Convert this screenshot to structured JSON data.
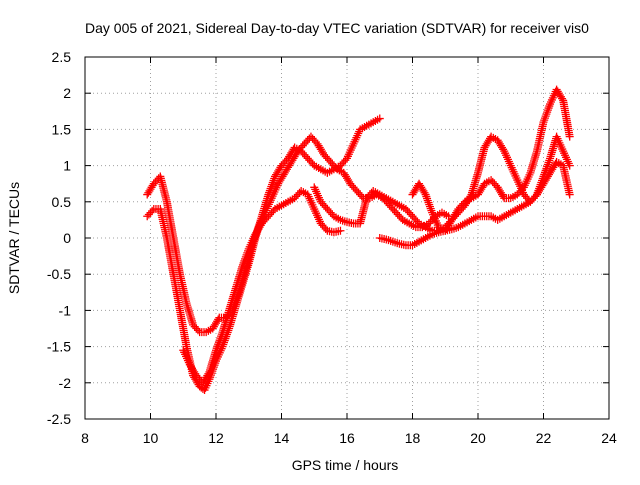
{
  "chart_data": {
    "type": "scatter",
    "title": "Day 005 of 2021, Sidereal Day-to-day VTEC variation (SDTVAR) for receiver vis0",
    "xlabel": "GPS time / hours",
    "ylabel": "SDTVAR / TECUs",
    "xlim": [
      8,
      24
    ],
    "ylim": [
      -2.5,
      2.5
    ],
    "xticks": [
      8,
      10,
      12,
      14,
      16,
      18,
      20,
      22,
      24
    ],
    "yticks": [
      -2.5,
      -2,
      -1.5,
      -1,
      -0.5,
      0,
      0.5,
      1,
      1.5,
      2,
      2.5
    ],
    "xtick_labels": [
      "8",
      "10",
      "12",
      "14",
      "16",
      "18",
      "20",
      "22",
      "24"
    ],
    "ytick_labels": [
      "-2.5",
      "-2",
      "-1.5",
      "-1",
      "-0.5",
      "0",
      "0.5",
      "1",
      "1.5",
      "2",
      "2.5"
    ],
    "grid": true,
    "marker": "+",
    "color": "#ff0000",
    "series": [
      {
        "x": [
          9.9,
          10.1,
          10.3,
          10.5,
          10.7,
          10.9,
          11.1,
          11.3,
          11.5,
          11.65,
          11.8,
          12.0,
          12.2,
          12.4,
          12.6,
          12.8,
          13.0,
          13.2,
          13.4,
          13.6,
          13.8,
          14.0,
          14.2,
          14.4,
          14.6,
          14.8,
          15.0,
          15.2,
          15.4,
          15.6,
          15.8,
          16.0,
          16.2,
          16.4,
          16.6,
          16.8,
          17.0
        ],
        "y": [
          0.3,
          0.4,
          0.4,
          0.0,
          -0.5,
          -1.0,
          -1.5,
          -1.9,
          -2.05,
          -2.1,
          -1.95,
          -1.7,
          -1.5,
          -1.25,
          -0.95,
          -0.65,
          -0.35,
          0.0,
          0.3,
          0.6,
          0.85,
          1.0,
          1.1,
          1.25,
          1.2,
          1.1,
          1.0,
          0.95,
          0.9,
          0.95,
          1.0,
          1.1,
          1.3,
          1.5,
          1.55,
          1.6,
          1.65
        ]
      },
      {
        "x": [
          9.9,
          10.1,
          10.3,
          10.5,
          10.7,
          10.9,
          11.1,
          11.3,
          11.5,
          11.7,
          11.9,
          12.1,
          12.3,
          12.5,
          12.7,
          12.9,
          13.1,
          13.3,
          13.5,
          13.7,
          13.9,
          14.1,
          14.3,
          14.5,
          14.7,
          14.9,
          15.1,
          15.3,
          15.5,
          15.7,
          15.9,
          16.1,
          16.3,
          16.5,
          16.7,
          16.9,
          17.1,
          17.3,
          17.5,
          17.7,
          17.9,
          18.1,
          18.3,
          18.5,
          18.7,
          18.9,
          19.1
        ],
        "y": [
          0.6,
          0.75,
          0.85,
          0.5,
          0.0,
          -0.5,
          -0.9,
          -1.2,
          -1.3,
          -1.3,
          -1.25,
          -1.1,
          -1.1,
          -1.0,
          -0.75,
          -0.45,
          -0.1,
          0.15,
          0.35,
          0.55,
          0.75,
          0.9,
          1.05,
          1.2,
          1.3,
          1.4,
          1.3,
          1.15,
          1.05,
          0.95,
          0.9,
          0.75,
          0.65,
          0.55,
          0.55,
          0.6,
          0.55,
          0.45,
          0.35,
          0.25,
          0.2,
          0.15,
          0.15,
          0.2,
          0.3,
          0.35,
          0.3
        ]
      },
      {
        "x": [
          11.0,
          11.2,
          11.4,
          11.6,
          11.8,
          12.0,
          12.2,
          12.4,
          12.6,
          12.8,
          13.0,
          13.2,
          13.4,
          13.6,
          13.8,
          14.0,
          14.2,
          14.4,
          14.6,
          14.8,
          15.0,
          15.2,
          15.4,
          15.6,
          15.8
        ],
        "y": [
          -1.55,
          -1.75,
          -1.9,
          -2.0,
          -1.85,
          -1.55,
          -1.3,
          -1.0,
          -0.7,
          -0.4,
          -0.15,
          0.05,
          0.2,
          0.3,
          0.4,
          0.45,
          0.5,
          0.55,
          0.65,
          0.6,
          0.4,
          0.2,
          0.1,
          0.08,
          0.1
        ]
      },
      {
        "x": [
          15.0,
          15.2,
          15.4,
          15.6,
          15.8,
          16.0,
          16.2,
          16.4,
          16.6,
          16.8,
          17.0,
          17.2,
          17.4,
          17.6,
          17.8,
          18.0,
          18.2,
          18.4,
          18.6,
          18.8,
          19.0,
          19.2,
          19.4,
          19.6,
          19.8,
          20.0,
          20.2,
          20.4,
          20.6,
          20.8,
          21.0,
          21.2,
          21.4,
          21.6,
          21.8,
          22.0,
          22.2,
          22.4,
          22.6,
          22.8
        ],
        "y": [
          0.7,
          0.5,
          0.4,
          0.3,
          0.25,
          0.22,
          0.2,
          0.2,
          0.55,
          0.65,
          0.6,
          0.55,
          0.5,
          0.45,
          0.4,
          0.3,
          0.2,
          0.15,
          0.1,
          0.1,
          0.15,
          0.25,
          0.35,
          0.45,
          0.6,
          0.9,
          1.25,
          1.4,
          1.35,
          1.2,
          1.0,
          0.8,
          0.6,
          0.5,
          0.6,
          0.85,
          1.1,
          1.4,
          1.2,
          1.0
        ]
      },
      {
        "x": [
          17.0,
          17.2,
          17.4,
          17.6,
          17.8,
          18.0,
          18.2,
          18.4,
          18.6,
          18.8,
          19.0,
          19.2,
          19.4,
          19.6,
          19.8,
          20.0,
          20.2,
          20.4,
          20.6,
          20.8,
          21.0,
          21.2,
          21.4,
          21.6,
          21.8,
          22.0,
          22.2,
          22.4,
          22.6,
          22.8
        ],
        "y": [
          0.0,
          -0.02,
          -0.05,
          -0.08,
          -0.1,
          -0.1,
          -0.05,
          0.0,
          0.05,
          0.08,
          0.1,
          0.12,
          0.15,
          0.2,
          0.25,
          0.3,
          0.3,
          0.3,
          0.25,
          0.3,
          0.35,
          0.4,
          0.45,
          0.5,
          0.6,
          0.75,
          0.9,
          1.05,
          1.0,
          0.6
        ]
      },
      {
        "x": [
          18.0,
          18.2,
          18.4,
          18.6,
          18.8,
          19.0,
          19.2,
          19.4,
          19.6,
          19.8,
          20.0,
          20.2,
          20.4,
          20.6,
          20.8,
          21.0,
          21.2,
          21.4,
          21.6,
          21.8,
          22.0,
          22.2,
          22.4,
          22.6,
          22.8
        ],
        "y": [
          0.6,
          0.75,
          0.6,
          0.35,
          0.15,
          0.1,
          0.25,
          0.4,
          0.5,
          0.55,
          0.6,
          0.75,
          0.8,
          0.7,
          0.55,
          0.55,
          0.6,
          0.7,
          0.9,
          1.2,
          1.6,
          1.85,
          2.05,
          1.9,
          1.4
        ]
      }
    ]
  }
}
